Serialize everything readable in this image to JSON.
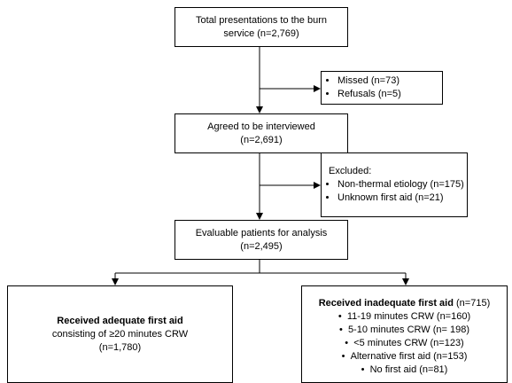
{
  "total": {
    "lines": [
      "Total presentations to the burn",
      "service (n=2,769)"
    ]
  },
  "missed": {
    "items": [
      "Missed (n=73)",
      "Refusals (n=5)"
    ]
  },
  "agreed": {
    "lines": [
      "Agreed to be interviewed",
      "(n=2,691)"
    ]
  },
  "excluded": {
    "heading": "Excluded:",
    "items": [
      "Non-thermal etiology (n=175)",
      "Unknown first aid (n=21)"
    ]
  },
  "evaluable": {
    "lines": [
      "Evaluable patients for analysis",
      "(n=2,495)"
    ]
  },
  "adequate": {
    "title": "Received adequate first aid",
    "lines": [
      "consisting of ≥20 minutes CRW",
      "(n=1,780)"
    ]
  },
  "inadequate": {
    "title": "Received inadequate first aid",
    "count": "(n=715)",
    "items": [
      "11-19 minutes CRW (n=160)",
      "5-10 minutes CRW (n= 198)",
      "<5 minutes CRW (n=123)",
      "Alternative first aid (n=153)",
      "No first aid (n=81)"
    ]
  }
}
